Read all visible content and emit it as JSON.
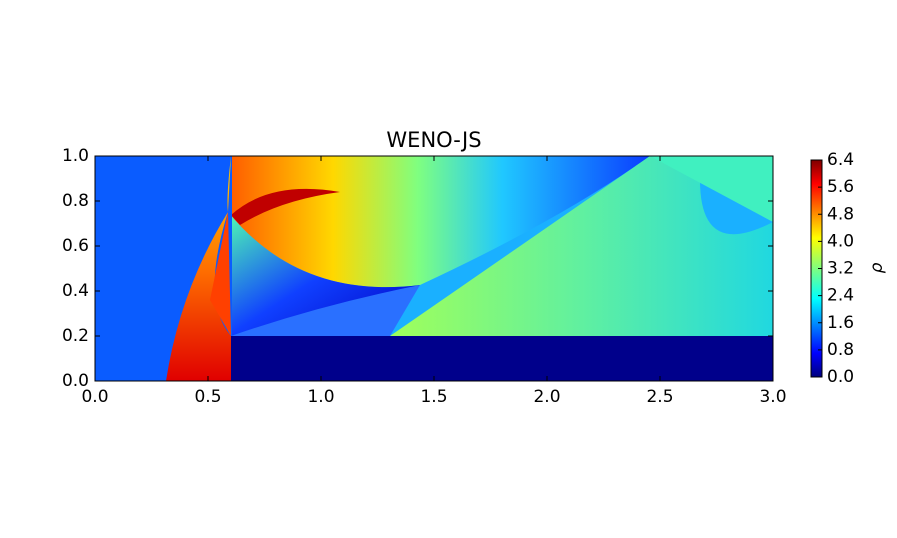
{
  "chart_data": {
    "type": "image",
    "title": "WENO-JS",
    "colormap": "jet",
    "xlim": [
      0,
      3
    ],
    "xticks": [
      {
        "value": 0,
        "label": "0.0"
      },
      {
        "value": 0.5,
        "label": "0.5"
      },
      {
        "value": 1,
        "label": "1.0"
      },
      {
        "value": 1.5,
        "label": "1.5"
      },
      {
        "value": 2,
        "label": "2.0"
      },
      {
        "value": 2.5,
        "label": "2.5"
      },
      {
        "value": 3,
        "label": "3.0"
      }
    ],
    "ylim": [
      0,
      1
    ],
    "yticks": [
      {
        "value": 0,
        "label": "0.0"
      },
      {
        "value": 0.2,
        "label": "0.2"
      },
      {
        "value": 0.4,
        "label": "0.4"
      },
      {
        "value": 0.6,
        "label": "0.6"
      },
      {
        "value": 0.8,
        "label": "0.8"
      },
      {
        "value": 1,
        "label": "1.0"
      }
    ],
    "colorbar": {
      "label": "ρ",
      "lim": [
        0,
        6.4
      ],
      "ticks": [
        {
          "value": 0,
          "label": "0.0"
        },
        {
          "value": 0.8,
          "label": "0.8"
        },
        {
          "value": 1.6,
          "label": "1.6"
        },
        {
          "value": 2.4,
          "label": "2.4"
        },
        {
          "value": 3.2,
          "label": "3.2"
        },
        {
          "value": 4,
          "label": "4.0"
        },
        {
          "value": 4.8,
          "label": "4.8"
        },
        {
          "value": 5.6,
          "label": "5.6"
        },
        {
          "value": 6.4,
          "label": "6.4"
        }
      ]
    }
  }
}
